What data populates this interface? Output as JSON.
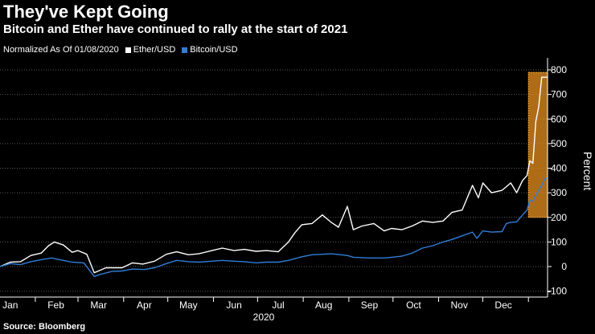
{
  "header": {
    "title": "They've Kept Going",
    "subtitle": "Bitcoin and Ether have continued to rally at the start of 2021"
  },
  "legend": {
    "note": "Normalized As Of 01/08/2020",
    "items": [
      {
        "label": "Ether/USD",
        "color": "#ffffff"
      },
      {
        "label": "Bitcoin/USD",
        "color": "#2f7ed8"
      }
    ]
  },
  "footer": {
    "source": "Source: Bloomberg"
  },
  "chart_data": {
    "type": "line",
    "title": "They've Kept Going",
    "subtitle": "Bitcoin and Ether have continued to rally at the start of 2021",
    "ylabel": "Percent",
    "xlabel": "2020",
    "ylim": [
      -100,
      800
    ],
    "yticks": [
      -100,
      0,
      100,
      200,
      300,
      400,
      500,
      600,
      700,
      800
    ],
    "xlim": [
      "2020-01-08",
      "2021-01-14"
    ],
    "month_ticks": [
      {
        "label": "Jan",
        "date": "2020-01-15"
      },
      {
        "label": "Feb",
        "date": "2020-02-15"
      },
      {
        "label": "Mar",
        "date": "2020-03-15"
      },
      {
        "label": "Apr",
        "date": "2020-04-15"
      },
      {
        "label": "May",
        "date": "2020-05-15"
      },
      {
        "label": "Jun",
        "date": "2020-06-15"
      },
      {
        "label": "Jul",
        "date": "2020-07-15"
      },
      {
        "label": "Aug",
        "date": "2020-08-15"
      },
      {
        "label": "Sep",
        "date": "2020-09-15"
      },
      {
        "label": "Oct",
        "date": "2020-10-15"
      },
      {
        "label": "Nov",
        "date": "2020-11-15"
      },
      {
        "label": "Dec",
        "date": "2020-12-15"
      }
    ],
    "grid": true,
    "legend_position": "top-left",
    "highlight": {
      "x_start": "2021-01-01",
      "x_end": "2021-01-14",
      "y_start": 200,
      "y_end": 790,
      "color": "#e08a1e"
    },
    "series": [
      {
        "name": "Ether/USD",
        "color": "#ffffff",
        "points": [
          [
            "2020-01-08",
            0
          ],
          [
            "2020-01-15",
            18
          ],
          [
            "2020-01-22",
            20
          ],
          [
            "2020-01-29",
            45
          ],
          [
            "2020-02-05",
            55
          ],
          [
            "2020-02-10",
            85
          ],
          [
            "2020-02-14",
            100
          ],
          [
            "2020-02-20",
            88
          ],
          [
            "2020-02-26",
            58
          ],
          [
            "2020-03-01",
            65
          ],
          [
            "2020-03-07",
            50
          ],
          [
            "2020-03-12",
            -25
          ],
          [
            "2020-03-16",
            -15
          ],
          [
            "2020-03-20",
            -5
          ],
          [
            "2020-03-31",
            -5
          ],
          [
            "2020-04-07",
            15
          ],
          [
            "2020-04-14",
            10
          ],
          [
            "2020-04-22",
            22
          ],
          [
            "2020-04-30",
            50
          ],
          [
            "2020-05-07",
            60
          ],
          [
            "2020-05-15",
            48
          ],
          [
            "2020-05-22",
            52
          ],
          [
            "2020-05-31",
            65
          ],
          [
            "2020-06-07",
            75
          ],
          [
            "2020-06-15",
            65
          ],
          [
            "2020-06-22",
            70
          ],
          [
            "2020-06-30",
            62
          ],
          [
            "2020-07-07",
            65
          ],
          [
            "2020-07-15",
            60
          ],
          [
            "2020-07-22",
            100
          ],
          [
            "2020-07-26",
            135
          ],
          [
            "2020-07-31",
            170
          ],
          [
            "2020-08-07",
            175
          ],
          [
            "2020-08-14",
            210
          ],
          [
            "2020-08-20",
            180
          ],
          [
            "2020-08-25",
            160
          ],
          [
            "2020-08-31",
            245
          ],
          [
            "2020-09-04",
            150
          ],
          [
            "2020-09-10",
            165
          ],
          [
            "2020-09-18",
            175
          ],
          [
            "2020-09-25",
            145
          ],
          [
            "2020-09-30",
            155
          ],
          [
            "2020-10-07",
            150
          ],
          [
            "2020-10-14",
            165
          ],
          [
            "2020-10-21",
            185
          ],
          [
            "2020-10-28",
            180
          ],
          [
            "2020-11-04",
            185
          ],
          [
            "2020-11-10",
            220
          ],
          [
            "2020-11-17",
            230
          ],
          [
            "2020-11-24",
            330
          ],
          [
            "2020-11-28",
            280
          ],
          [
            "2020-12-01",
            340
          ],
          [
            "2020-12-07",
            300
          ],
          [
            "2020-12-14",
            310
          ],
          [
            "2020-12-20",
            340
          ],
          [
            "2020-12-24",
            300
          ],
          [
            "2020-12-28",
            350
          ],
          [
            "2020-12-31",
            370
          ],
          [
            "2021-01-02",
            430
          ],
          [
            "2021-01-04",
            420
          ],
          [
            "2021-01-06",
            590
          ],
          [
            "2021-01-08",
            650
          ],
          [
            "2021-01-10",
            770
          ],
          [
            "2021-01-14",
            770
          ]
        ]
      },
      {
        "name": "Bitcoin/USD",
        "color": "#2f7ed8",
        "points": [
          [
            "2020-01-08",
            0
          ],
          [
            "2020-01-15",
            12
          ],
          [
            "2020-01-22",
            8
          ],
          [
            "2020-01-29",
            20
          ],
          [
            "2020-02-05",
            28
          ],
          [
            "2020-02-12",
            35
          ],
          [
            "2020-02-20",
            25
          ],
          [
            "2020-02-26",
            18
          ],
          [
            "2020-03-05",
            15
          ],
          [
            "2020-03-12",
            -40
          ],
          [
            "2020-03-16",
            -32
          ],
          [
            "2020-03-24",
            -20
          ],
          [
            "2020-03-31",
            -18
          ],
          [
            "2020-04-07",
            -10
          ],
          [
            "2020-04-15",
            -12
          ],
          [
            "2020-04-22",
            -5
          ],
          [
            "2020-04-30",
            12
          ],
          [
            "2020-05-07",
            25
          ],
          [
            "2020-05-15",
            20
          ],
          [
            "2020-05-22",
            18
          ],
          [
            "2020-05-31",
            22
          ],
          [
            "2020-06-07",
            25
          ],
          [
            "2020-06-15",
            22
          ],
          [
            "2020-06-22",
            20
          ],
          [
            "2020-06-30",
            15
          ],
          [
            "2020-07-07",
            18
          ],
          [
            "2020-07-15",
            18
          ],
          [
            "2020-07-22",
            25
          ],
          [
            "2020-07-31",
            40
          ],
          [
            "2020-08-07",
            48
          ],
          [
            "2020-08-14",
            50
          ],
          [
            "2020-08-20",
            52
          ],
          [
            "2020-08-31",
            45
          ],
          [
            "2020-09-04",
            38
          ],
          [
            "2020-09-15",
            35
          ],
          [
            "2020-09-25",
            35
          ],
          [
            "2020-09-30",
            38
          ],
          [
            "2020-10-07",
            42
          ],
          [
            "2020-10-14",
            55
          ],
          [
            "2020-10-21",
            75
          ],
          [
            "2020-10-28",
            85
          ],
          [
            "2020-11-04",
            100
          ],
          [
            "2020-11-10",
            110
          ],
          [
            "2020-11-17",
            125
          ],
          [
            "2020-11-24",
            140
          ],
          [
            "2020-11-27",
            115
          ],
          [
            "2020-12-01",
            145
          ],
          [
            "2020-12-07",
            140
          ],
          [
            "2020-12-14",
            142
          ],
          [
            "2020-12-17",
            175
          ],
          [
            "2020-12-20",
            180
          ],
          [
            "2020-12-24",
            182
          ],
          [
            "2020-12-28",
            210
          ],
          [
            "2020-12-31",
            230
          ],
          [
            "2021-01-02",
            270
          ],
          [
            "2021-01-04",
            265
          ],
          [
            "2021-01-07",
            300
          ],
          [
            "2021-01-10",
            330
          ],
          [
            "2021-01-12",
            355
          ],
          [
            "2021-01-14",
            360
          ]
        ]
      }
    ]
  }
}
